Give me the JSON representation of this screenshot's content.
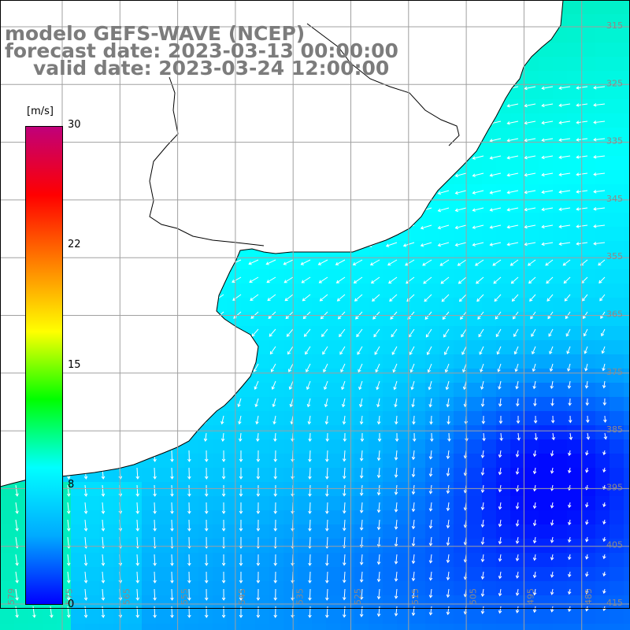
{
  "title": {
    "line1": "modelo GEFS-WAVE (NCEP)",
    "line2": "forecast date: 2023-03-13 00:00:00",
    "line3": "valid date: 2023-03-24 12:00:00"
  },
  "colorbar": {
    "unit": "[m/s]",
    "min": 0,
    "max": 30,
    "ticks": [
      "30",
      "22",
      "15",
      "8",
      "0"
    ],
    "tick_values": [
      30,
      22,
      15,
      8,
      0
    ],
    "colors": [
      "#0000ff",
      "#00aaff",
      "#00ffff",
      "#00ff00",
      "#ffff00",
      "#ff8000",
      "#ff0000",
      "#c0007a"
    ]
  },
  "map": {
    "lat_labels": [
      "315",
      "325",
      "335",
      "345",
      "355",
      "365",
      "375",
      "385",
      "395",
      "405",
      "415"
    ],
    "lon_labels": [
      "579",
      "575",
      "565",
      "555",
      "545",
      "535",
      "525",
      "515",
      "505",
      "495",
      "485"
    ],
    "land_color": "#ffffff",
    "coast_color": "#000000",
    "grid_color": "#a0a0a0",
    "arrow_color": "#ffffff"
  }
}
